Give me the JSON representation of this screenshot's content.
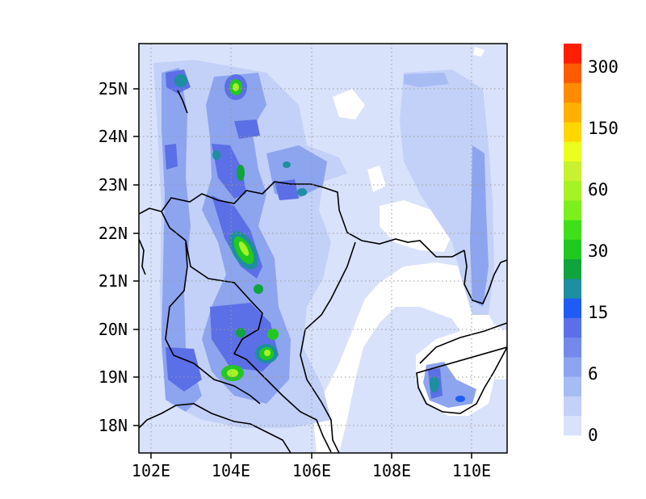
{
  "map": {
    "x_ticks": [
      "102E",
      "104E",
      "106E",
      "108E",
      "110E"
    ],
    "y_ticks": [
      "18N",
      "19N",
      "20N",
      "21N",
      "22N",
      "23N",
      "24N",
      "25N"
    ],
    "lon_range": [
      101.65,
      110.85
    ],
    "lat_range": [
      17.45,
      25.95
    ],
    "gridlines": "dotted",
    "background_fill": "#d9e2fb",
    "land_borders": "black outlines"
  },
  "colorbar": {
    "labels": [
      "0",
      "6",
      "15",
      "30",
      "60",
      "150",
      "300"
    ],
    "colors": [
      "#d9e2fb",
      "#c3d1f8",
      "#a8bcf4",
      "#8da4ef",
      "#7389eb",
      "#5b6fe6",
      "#1f5cf5",
      "#1d8fa0",
      "#0fa43c",
      "#21c821",
      "#3fe01a",
      "#7df01c",
      "#a6f225",
      "#c8f230",
      "#ebff1e",
      "#ffd600",
      "#ffb000",
      "#ff8c00",
      "#ff5a00",
      "#ff1e00"
    ]
  }
}
